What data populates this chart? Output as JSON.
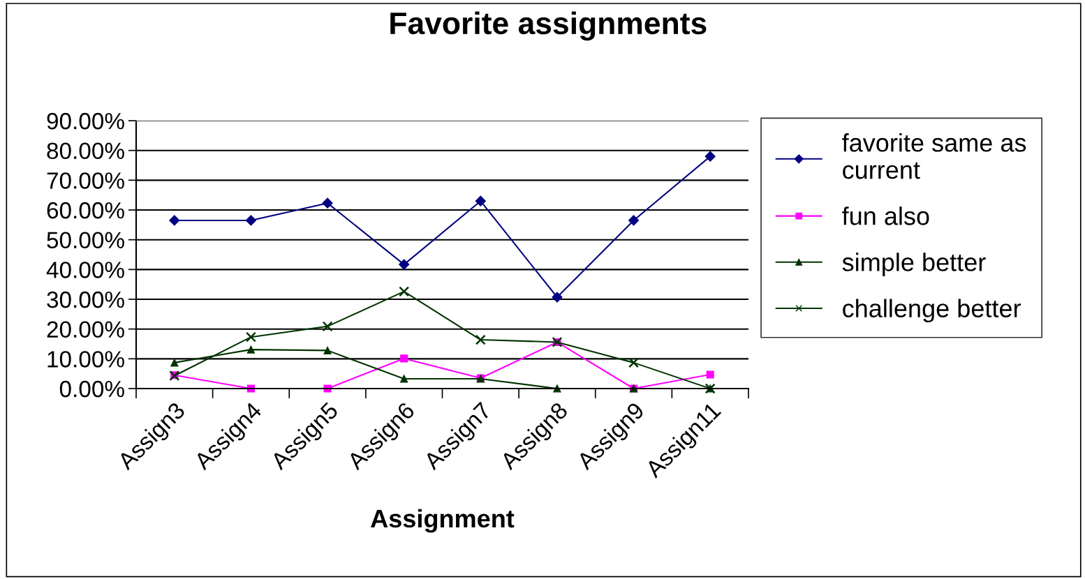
{
  "chart_data": {
    "type": "line",
    "title": "Favorite assignments",
    "xlabel": "Assignment",
    "categories": [
      "Assign3",
      "Assign4",
      "Assign5",
      "Assign6",
      "Assign7",
      "Assign8",
      "Assign9",
      "Assign11"
    ],
    "series": [
      {
        "name": "favorite same as current",
        "color": "#000080",
        "marker": "diamond",
        "values": [
          56.5,
          56.5,
          62.3,
          41.7,
          63.0,
          30.7,
          56.5,
          78.0
        ]
      },
      {
        "name": "fun also",
        "color": "#ff00ff",
        "marker": "square",
        "values": [
          4.5,
          0,
          0,
          10.1,
          3.5,
          15.6,
          0,
          4.7
        ]
      },
      {
        "name": "simple better",
        "color": "#003300",
        "marker": "triangle",
        "values": [
          8.7,
          13.1,
          12.8,
          3.3,
          3.3,
          0,
          0,
          0
        ]
      },
      {
        "name": "challenge better",
        "color": "#003300",
        "marker": "cross",
        "values": [
          4.3,
          17.3,
          20.9,
          32.6,
          16.4,
          15.6,
          8.7,
          0
        ]
      }
    ],
    "ylim": [
      0,
      90
    ],
    "yticks": [
      {
        "value": 0,
        "label": "0.00%"
      },
      {
        "value": 10,
        "label": "10.00%"
      },
      {
        "value": 20,
        "label": "20.00%"
      },
      {
        "value": 30,
        "label": "30.00%"
      },
      {
        "value": 40,
        "label": "40.00%"
      },
      {
        "value": 50,
        "label": "50.00%"
      },
      {
        "value": 60,
        "label": "60.00%"
      },
      {
        "value": 70,
        "label": "70.00%"
      },
      {
        "value": 80,
        "label": "80.00%"
      },
      {
        "value": 90,
        "label": "90.00%"
      }
    ],
    "grid": "y",
    "legend": "right",
    "line_style": "solid"
  }
}
